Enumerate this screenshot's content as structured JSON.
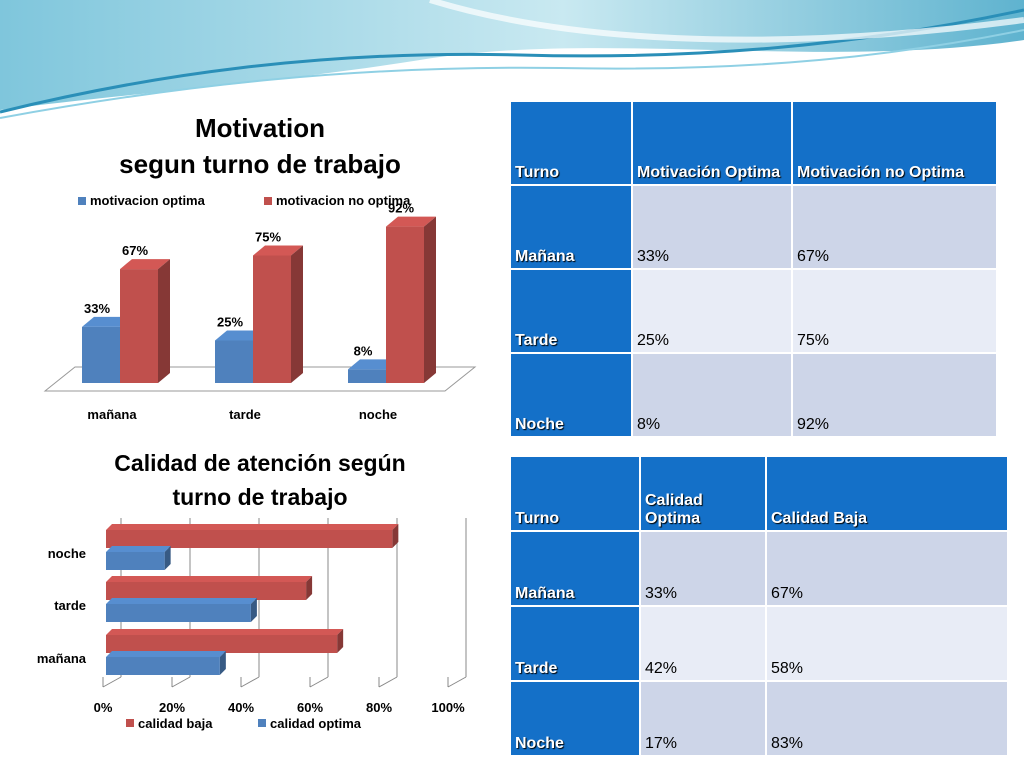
{
  "slide": {
    "colors": {
      "header": "#1470c8",
      "row_odd": "#cdd5e8",
      "row_even": "#e8ecf6",
      "red": "#c0504d",
      "blue": "#4f81bd"
    }
  },
  "chart_data": [
    {
      "type": "bar",
      "title": "Motivation\nsegun turno de trabajo",
      "title_lines": [
        "Motivation",
        "segun turno de trabajo"
      ],
      "categories": [
        "mañana",
        "tarde",
        "noche"
      ],
      "series": [
        {
          "name": "motivacion optima",
          "values": [
            33,
            25,
            8
          ],
          "labels": [
            "33%",
            "25%",
            "8%"
          ],
          "color": "#4f81bd"
        },
        {
          "name": "motivacion no optima",
          "values": [
            67,
            75,
            92
          ],
          "labels": [
            "67%",
            "75%",
            "92%"
          ],
          "color": "#c0504d"
        }
      ],
      "ylim": [
        0,
        100
      ],
      "legend": "top",
      "grid": false,
      "style": "3d-column"
    },
    {
      "type": "bar",
      "orientation": "horizontal",
      "title": "Calidad de atención según\nturno de trabajo",
      "title_lines": [
        "Calidad de atención según",
        "turno de trabajo"
      ],
      "categories": [
        "mañana",
        "tarde",
        "noche"
      ],
      "series": [
        {
          "name": "calidad optima",
          "values": [
            33,
            42,
            17
          ],
          "color": "#4f81bd"
        },
        {
          "name": "calidad baja",
          "values": [
            67,
            58,
            83
          ],
          "color": "#c0504d"
        }
      ],
      "x_ticks": [
        "0%",
        "20%",
        "40%",
        "60%",
        "80%",
        "100%"
      ],
      "xlim": [
        0,
        100
      ],
      "legend": "bottom",
      "legend_order": [
        "calidad baja",
        "calidad optima"
      ],
      "grid": true,
      "style": "3d-bar"
    }
  ],
  "table_motivation": {
    "headers": [
      "Turno",
      "Motivación Optima",
      "Motivación no Optima"
    ],
    "rows": [
      {
        "turno": "Mañana",
        "a": "33%",
        "b": "67%"
      },
      {
        "turno": "Tarde",
        "a": "25%",
        "b": "75%"
      },
      {
        "turno": "Noche",
        "a": "8%",
        "b": "92%"
      }
    ]
  },
  "table_calidad": {
    "headers": [
      "Turno",
      "Calidad Optima",
      "Calidad  Baja"
    ],
    "rows": [
      {
        "turno": "Mañana",
        "a": "33%",
        "b": "67%"
      },
      {
        "turno": "Tarde",
        "a": "42%",
        "b": "58%"
      },
      {
        "turno": "Noche",
        "a": "17%",
        "b": "83%"
      }
    ]
  }
}
